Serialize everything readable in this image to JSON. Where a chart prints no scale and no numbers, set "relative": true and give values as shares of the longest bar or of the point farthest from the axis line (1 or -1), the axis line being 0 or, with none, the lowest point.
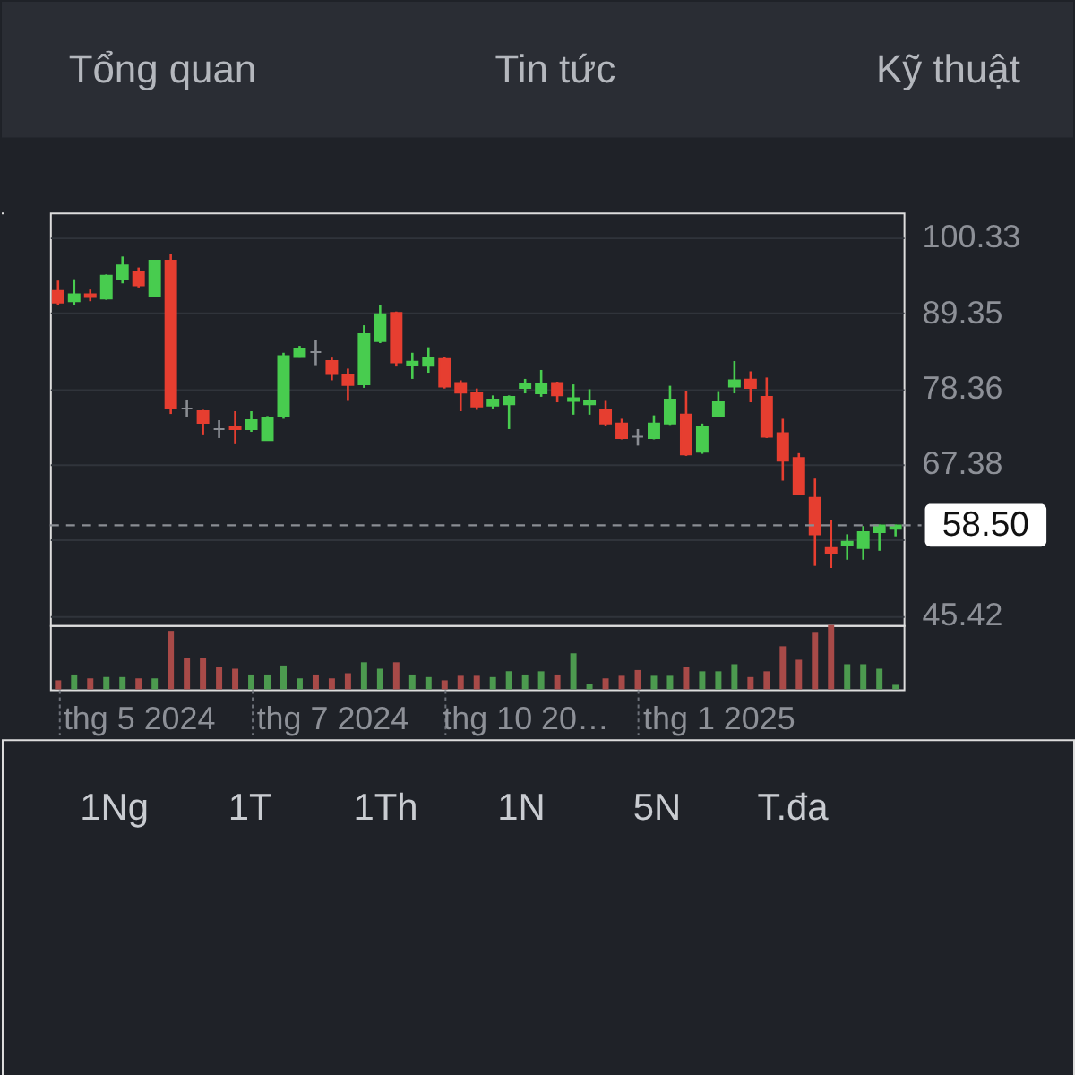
{
  "chart_data": [
    {
      "type": "other",
      "annotations": [
        "Tổng quan",
        "Tin tức",
        "Kỹ thuật"
      ]
    },
    {
      "type": "candlestick",
      "categories": [
        null,
        null,
        null,
        null,
        null,
        null,
        null,
        null,
        null,
        null,
        null,
        null,
        null,
        null,
        null,
        null,
        null,
        null,
        null,
        null,
        null,
        null,
        null,
        null,
        null,
        null,
        null,
        null,
        null,
        null,
        null,
        null,
        null,
        null,
        null,
        null,
        null,
        null,
        null,
        null,
        null,
        null,
        null,
        null,
        null,
        null,
        null,
        null,
        null,
        null,
        null,
        null,
        null
      ],
      "ohlc": [
        [
          92.6,
          94.1,
          90.6,
          90.9
        ],
        [
          91.1,
          94.3,
          90.6,
          92.1
        ],
        [
          92.1,
          92.8,
          91.1,
          91.7
        ],
        [
          91.5,
          95.0,
          91.3,
          94.8
        ],
        [
          94.3,
          97.6,
          93.7,
          96.3
        ],
        [
          95.4,
          96.0,
          93.1,
          93.4
        ],
        [
          91.9,
          97.1,
          91.8,
          97.0
        ],
        [
          97.0,
          98.0,
          74.7,
          75.5
        ],
        [
          75.5,
          76.8,
          74.2,
          75.5
        ],
        [
          75.1,
          75.3,
          71.6,
          73.4
        ],
        [
          72.5,
          73.8,
          71.2,
          72.5
        ],
        [
          72.9,
          75.1,
          70.3,
          72.5
        ],
        [
          72.5,
          75.1,
          72.1,
          73.8
        ],
        [
          70.9,
          74.4,
          70.8,
          74.2
        ],
        [
          74.4,
          83.6,
          74.0,
          83.1
        ],
        [
          83.0,
          84.6,
          82.9,
          84.2
        ],
        [
          83.7,
          85.5,
          81.8,
          83.7
        ],
        [
          82.4,
          82.9,
          79.6,
          80.5
        ],
        [
          80.4,
          81.3,
          76.6,
          78.9
        ],
        [
          79.0,
          87.6,
          78.5,
          86.3
        ],
        [
          85.3,
          90.5,
          85.0,
          89.2
        ],
        [
          89.4,
          89.6,
          81.6,
          82.2
        ],
        [
          81.8,
          83.6,
          79.8,
          82.3
        ],
        [
          81.7,
          84.4,
          80.7,
          82.9
        ],
        [
          82.7,
          83.0,
          78.4,
          78.7
        ],
        [
          79.2,
          79.6,
          75.1,
          77.8
        ],
        [
          77.7,
          78.4,
          75.3,
          75.8
        ],
        [
          75.9,
          77.4,
          75.5,
          76.8
        ],
        [
          76.1,
          77.4,
          72.5,
          77.2
        ],
        [
          78.5,
          79.8,
          77.7,
          79.0
        ],
        [
          77.7,
          81.1,
          77.2,
          79.0
        ],
        [
          79.2,
          79.4,
          76.4,
          77.4
        ],
        [
          76.6,
          79.0,
          74.6,
          77.0
        ],
        [
          76.1,
          78.3,
          74.6,
          76.6
        ],
        [
          75.3,
          76.6,
          72.9,
          73.3
        ],
        [
          73.3,
          74.0,
          71.0,
          71.2
        ],
        [
          71.4,
          72.5,
          70.1,
          71.4
        ],
        [
          71.2,
          74.5,
          71.0,
          73.3
        ],
        [
          73.3,
          78.8,
          73.1,
          76.8
        ],
        [
          74.6,
          78.1,
          68.6,
          68.8
        ],
        [
          69.2,
          73.3,
          68.9,
          72.9
        ],
        [
          74.4,
          77.9,
          74.2,
          76.4
        ],
        [
          78.7,
          82.4,
          77.7,
          79.6
        ],
        [
          79.7,
          80.9,
          76.4,
          78.5
        ],
        [
          77.2,
          80.0,
          71.2,
          71.4
        ],
        [
          71.9,
          74.0,
          65.0,
          67.9
        ],
        [
          68.3,
          69.0,
          63.0,
          63.1
        ],
        [
          62.5,
          65.3,
          52.6,
          57.2
        ],
        [
          55.2,
          59.3,
          52.3,
          54.5
        ],
        [
          55.6,
          57.2,
          53.5,
          56.1
        ],
        [
          55.2,
          58.4,
          53.5,
          57.5
        ],
        [
          57.5,
          58.6,
          54.8,
          58.5
        ],
        [
          58.0,
          58.6,
          56.9,
          58.5
        ]
      ],
      "colors": [
        "#e63e30",
        "#48cc4f",
        "#e63e30",
        "#48cc4f",
        "#48cc4f",
        "#e63e30",
        "#48cc4f",
        "#e63e30",
        "#8a8d93",
        "#e63e30",
        "#8a8d93",
        "#e63e30",
        "#48cc4f",
        "#48cc4f",
        "#48cc4f",
        "#48cc4f",
        "#8a8d93",
        "#e63e30",
        "#e63e30",
        "#48cc4f",
        "#48cc4f",
        "#e63e30",
        "#48cc4f",
        "#48cc4f",
        "#e63e30",
        "#e63e30",
        "#e63e30",
        "#48cc4f",
        "#48cc4f",
        "#48cc4f",
        "#48cc4f",
        "#e63e30",
        "#48cc4f",
        "#48cc4f",
        "#e63e30",
        "#e63e30",
        "#8a8d93",
        "#48cc4f",
        "#48cc4f",
        "#e63e30",
        "#48cc4f",
        "#48cc4f",
        "#48cc4f",
        "#e63e30",
        "#e63e30",
        "#e63e30",
        "#e63e30",
        "#e63e30",
        "#e63e30",
        "#48cc4f",
        "#48cc4f",
        "#48cc4f",
        "#48cc4f"
      ],
      "ylim": [
        44,
        104
      ],
      "yticks": [
        100.33,
        89.35,
        78.36,
        67.38,
        {
          "value": 56.4,
          "label": null
        },
        45.42
      ],
      "grid": "y",
      "ref_lines": [
        {
          "axis": "y",
          "value": 58.5,
          "label": "58.50",
          "color": "#8a8d93",
          "line_style": "dashed"
        }
      ]
    },
    {
      "type": "bar",
      "relative": true,
      "categories": [
        null,
        null,
        null,
        null,
        null,
        "thg 5 2024",
        null,
        null,
        null,
        null,
        null,
        null,
        null,
        null,
        null,
        null,
        null,
        "thg 7 2024",
        null,
        null,
        null,
        null,
        null,
        null,
        null,
        null,
        null,
        null,
        null,
        "thg 10 20…",
        null,
        null,
        null,
        null,
        null,
        null,
        null,
        null,
        null,
        null,
        null,
        "thg 1 2025",
        null,
        null,
        null,
        null,
        null,
        null,
        null,
        null,
        null,
        null,
        null
      ],
      "values": [
        0.14,
        0.23,
        0.17,
        0.19,
        0.19,
        0.17,
        0.17,
        0.91,
        0.49,
        0.49,
        0.35,
        0.32,
        0.23,
        0.23,
        0.37,
        0.17,
        0.23,
        0.17,
        0.25,
        0.42,
        0.32,
        0.42,
        0.23,
        0.19,
        0.14,
        0.21,
        0.21,
        0.19,
        0.28,
        0.23,
        0.28,
        0.23,
        0.56,
        0.09,
        0.17,
        0.21,
        0.3,
        0.21,
        0.21,
        0.35,
        0.28,
        0.28,
        0.39,
        0.19,
        0.28,
        0.67,
        0.46,
        0.88,
        1,
        0.39,
        0.39,
        0.32,
        0.07
      ],
      "colors": [
        "#a84a48",
        "#4c9a4f",
        "#a84a48",
        "#4c9a4f",
        "#4c9a4f",
        "#a84a48",
        "#4c9a4f",
        "#a84a48",
        "#a84a48",
        "#a84a48",
        "#a84a48",
        "#a84a48",
        "#4c9a4f",
        "#4c9a4f",
        "#4c9a4f",
        "#4c9a4f",
        "#a84a48",
        "#a84a48",
        "#a84a48",
        "#4c9a4f",
        "#4c9a4f",
        "#a84a48",
        "#4c9a4f",
        "#4c9a4f",
        "#a84a48",
        "#a84a48",
        "#a84a48",
        "#4c9a4f",
        "#4c9a4f",
        "#4c9a4f",
        "#4c9a4f",
        "#a84a48",
        "#4c9a4f",
        "#4c9a4f",
        "#a84a48",
        "#a84a48",
        "#a84a48",
        "#4c9a4f",
        "#4c9a4f",
        "#a84a48",
        "#4c9a4f",
        "#4c9a4f",
        "#4c9a4f",
        "#a84a48",
        "#a84a48",
        "#a84a48",
        "#a84a48",
        "#a84a48",
        "#a84a48",
        "#4c9a4f",
        "#4c9a4f",
        "#4c9a4f",
        "#4c9a4f"
      ]
    },
    {
      "type": "other",
      "annotations": [
        "1Ng",
        "1T",
        "1Th",
        "1N",
        "5N",
        "T.đa"
      ]
    }
  ]
}
